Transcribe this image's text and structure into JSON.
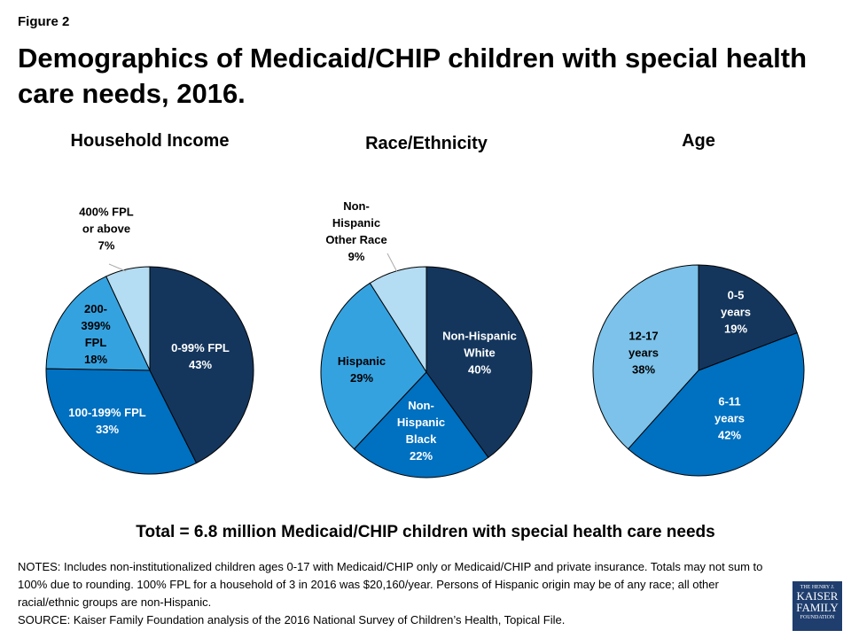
{
  "figure_label": "Figure 2",
  "title": "Demographics of Medicaid/CHIP children with special health care needs, 2016.",
  "chart_data": [
    {
      "type": "pie",
      "title": "Household Income",
      "start": "top",
      "direction": "clockwise",
      "slices": [
        {
          "label": "0-99% FPL",
          "value": 43,
          "display": "43%",
          "color": "#14365d"
        },
        {
          "label": "100-199% FPL",
          "value": 33,
          "display": "33%",
          "color": "#0070c0"
        },
        {
          "label": "200-399% FPL",
          "value": 18,
          "display": "18%",
          "color": "#35a2e0"
        },
        {
          "label": "400% FPL or above",
          "value": 7,
          "display": "7%",
          "color": "#b4dcf2"
        }
      ]
    },
    {
      "type": "pie",
      "title": "Race/Ethnicity",
      "start": "top",
      "direction": "clockwise",
      "slices": [
        {
          "label": "Non-Hispanic White",
          "value": 40,
          "display": "40%",
          "color": "#14365d"
        },
        {
          "label": "Non-Hispanic Black",
          "value": 22,
          "display": "22%",
          "color": "#0070c0"
        },
        {
          "label": "Hispanic",
          "value": 29,
          "display": "29%",
          "color": "#35a2e0"
        },
        {
          "label": "Non-Hispanic Other Race",
          "value": 9,
          "display": "9%",
          "color": "#b4dcf2"
        }
      ]
    },
    {
      "type": "pie",
      "title": "Age",
      "start": "top",
      "direction": "clockwise",
      "slices": [
        {
          "label": "0-5 years",
          "value": 19,
          "display": "19%",
          "color": "#14365d"
        },
        {
          "label": "6-11 years",
          "value": 42,
          "display": "42%",
          "color": "#0070c0"
        },
        {
          "label": "12-17 years",
          "value": 38,
          "display": "38%",
          "color": "#7cc2ea"
        }
      ]
    }
  ],
  "total": "Total = 6.8 million Medicaid/CHIP children with special health care needs",
  "notes": "NOTES: Includes non-institutionalized children ages 0-17 with Medicaid/CHIP only or Medicaid/CHIP and private insurance. Totals may not sum to 100% due to rounding. 100% FPL for a household of 3 in 2016 was $20,160/year. Persons of Hispanic origin may be of any race; all other racial/ethnic groups are non-Hispanic.",
  "source": "SOURCE: Kaiser Family Foundation  analysis of the 2016 National Survey of Children’s Health, Topical File.",
  "logo": {
    "line1": "THE HENRY J.",
    "line2": "KAISER",
    "line3": "FAMILY",
    "line4": "FOUNDATION"
  }
}
